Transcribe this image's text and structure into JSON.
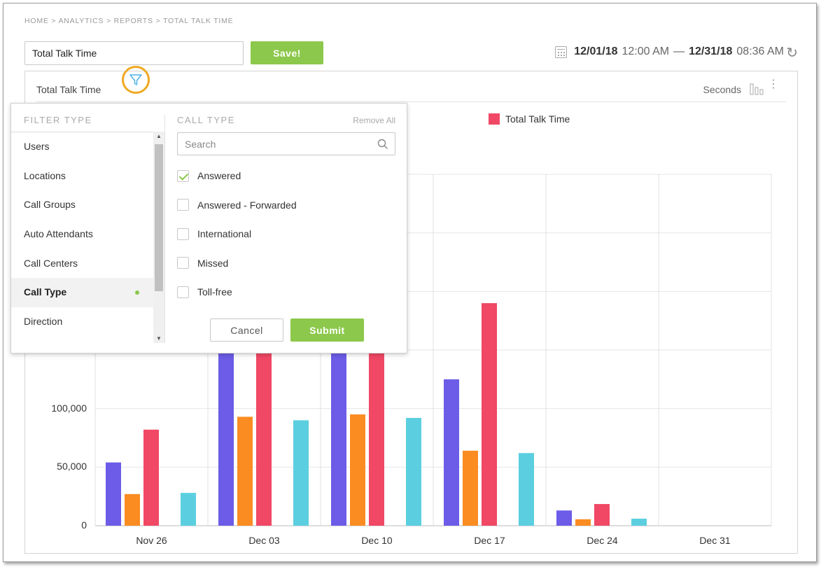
{
  "breadcrumb": "HOME > ANALYTICS > REPORTS > TOTAL TALK TIME",
  "report_title_value": "Total Talk Time",
  "save_label": "Save!",
  "date_range": {
    "start_date": "12/01/18",
    "start_time": "12:00 AM",
    "separator": "—",
    "end_date": "12/31/18",
    "end_time": "08:36 AM"
  },
  "panel": {
    "title": "Total Talk Time",
    "units": "Seconds"
  },
  "filter": {
    "filter_type_heading": "FILTER TYPE",
    "filter_types": [
      {
        "label": "Users",
        "active": false
      },
      {
        "label": "Locations",
        "active": false
      },
      {
        "label": "Call Groups",
        "active": false
      },
      {
        "label": "Auto Attendants",
        "active": false
      },
      {
        "label": "Call Centers",
        "active": false
      },
      {
        "label": "Call Type",
        "active": true
      },
      {
        "label": "Direction",
        "active": false
      }
    ],
    "call_type_heading": "CALL TYPE",
    "remove_all_label": "Remove All",
    "search_placeholder": "Search",
    "options": [
      {
        "label": "Answered",
        "checked": true
      },
      {
        "label": "Answered - Forwarded",
        "checked": false
      },
      {
        "label": "International",
        "checked": false
      },
      {
        "label": "Missed",
        "checked": false
      },
      {
        "label": "Toll-free",
        "checked": false
      }
    ],
    "cancel_label": "Cancel",
    "submit_label": "Submit"
  },
  "colors": {
    "accent_green": "#8cc84b",
    "highlight_ring": "#f0a820",
    "series": [
      "#6c5ce7",
      "#fb8c22",
      "#f04865",
      "#5bcfe0"
    ]
  },
  "chart_data": {
    "type": "bar",
    "legend": "Total Talk Time",
    "categories": [
      "Nov 26",
      "Dec 03",
      "Dec 10",
      "Dec 17",
      "Dec 24",
      "Dec 31"
    ],
    "yticks": [
      "0",
      "50,000",
      "100,000"
    ],
    "ylim": [
      0,
      300000
    ],
    "series": [
      {
        "values": [
          54000,
          150000,
          150000,
          125000,
          13000,
          0
        ]
      },
      {
        "values": [
          27000,
          93000,
          95000,
          64000,
          5500,
          0
        ]
      },
      {
        "name": "Total Talk Time",
        "values": [
          82000,
          150000,
          150000,
          190000,
          18500,
          0
        ]
      },
      {
        "values": [
          28000,
          90000,
          92000,
          62000,
          6000,
          0
        ]
      }
    ]
  }
}
